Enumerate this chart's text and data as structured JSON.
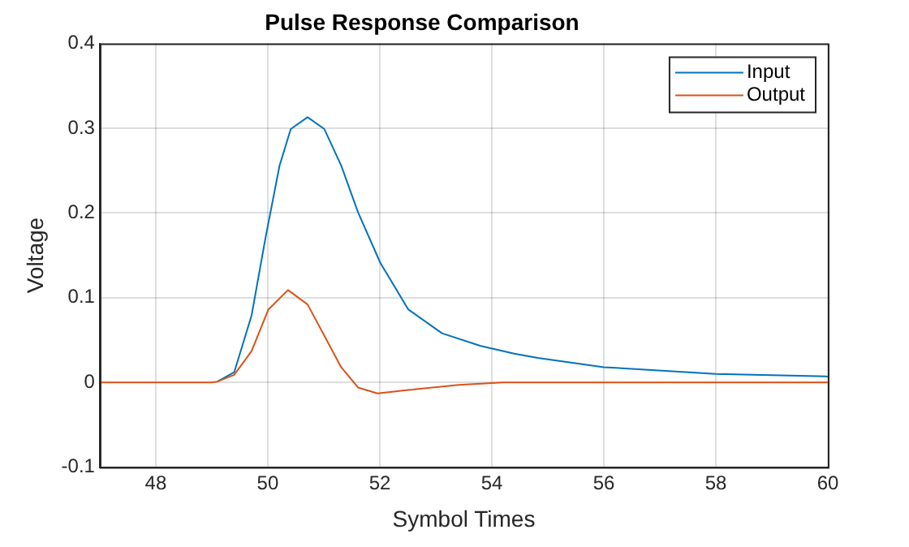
{
  "chart_data": {
    "type": "line",
    "title": "Pulse Response Comparison",
    "xlabel": "Symbol Times",
    "ylabel": "Voltage",
    "xlim": [
      47,
      60
    ],
    "xticks": [
      48,
      50,
      52,
      54,
      56,
      58,
      60
    ],
    "ylim": [
      -0.1,
      0.4
    ],
    "yticks": [
      -0.1,
      0,
      0.1,
      0.2,
      0.3,
      0.4
    ],
    "grid": true,
    "legend": "top right",
    "marker": "none",
    "line_style": "solid",
    "series": [
      {
        "name": "Input",
        "color": "#0072bd",
        "x": [
          49.1,
          49.4,
          49.71,
          49.96,
          50.21,
          50.41,
          50.71,
          51.01,
          51.31,
          51.61,
          52.01,
          52.51,
          53.11,
          53.8,
          54.4,
          54.82,
          56,
          58,
          60
        ],
        "values": [
          0.001,
          0.012,
          0.079,
          0.171,
          0.256,
          0.299,
          0.313,
          0.299,
          0.256,
          0.201,
          0.141,
          0.086,
          0.058,
          0.043,
          0.034,
          0.029,
          0.018,
          0.01,
          0.007
        ]
      },
      {
        "name": "Output",
        "color": "#d95319",
        "x": [
          47,
          48,
          49,
          49.1,
          49.4,
          49.71,
          50.01,
          50.36,
          50.71,
          51.01,
          51.31,
          51.61,
          51.96,
          52.51,
          53.41,
          54.2,
          56,
          58,
          60
        ],
        "values": [
          0,
          0,
          0,
          0.001,
          0.009,
          0.037,
          0.086,
          0.109,
          0.092,
          0.055,
          0.018,
          -0.006,
          -0.013,
          -0.009,
          -0.003,
          0,
          0,
          0,
          0
        ]
      }
    ]
  }
}
